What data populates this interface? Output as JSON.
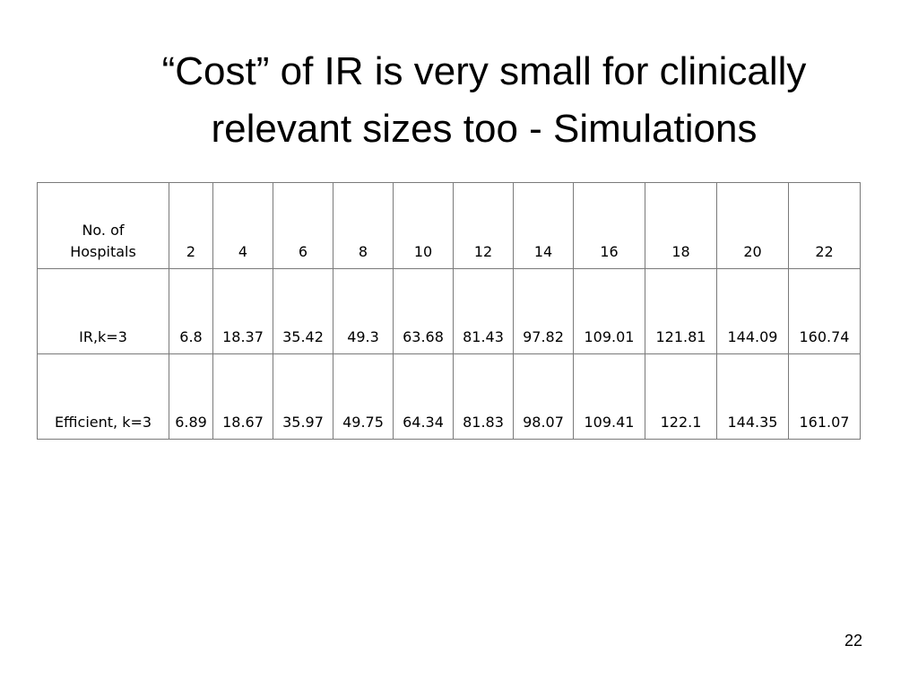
{
  "title": {
    "line1": "“Cost” of IR is very small for clinically",
    "line2": "relevant sizes too  - Simulations"
  },
  "table": {
    "header": {
      "label_line1": "No. of",
      "label_line2": "Hospitals",
      "values": [
        "2",
        "4",
        "6",
        "8",
        "10",
        "12",
        "14",
        "16",
        "18",
        "20",
        "22"
      ]
    },
    "rows": [
      {
        "label": "IR,k=3",
        "values": [
          "6.8",
          "18.37",
          "35.42",
          "49.3",
          "63.68",
          "81.43",
          "97.82",
          "109.01",
          "121.81",
          "144.09",
          "160.74"
        ]
      },
      {
        "label": "Efficient, k=3",
        "values": [
          "6.89",
          "18.67",
          "35.97",
          "49.75",
          "64.34",
          "81.83",
          "98.07",
          "109.41",
          "122.1",
          "144.35",
          "161.07"
        ]
      }
    ]
  },
  "page_number": "22"
}
